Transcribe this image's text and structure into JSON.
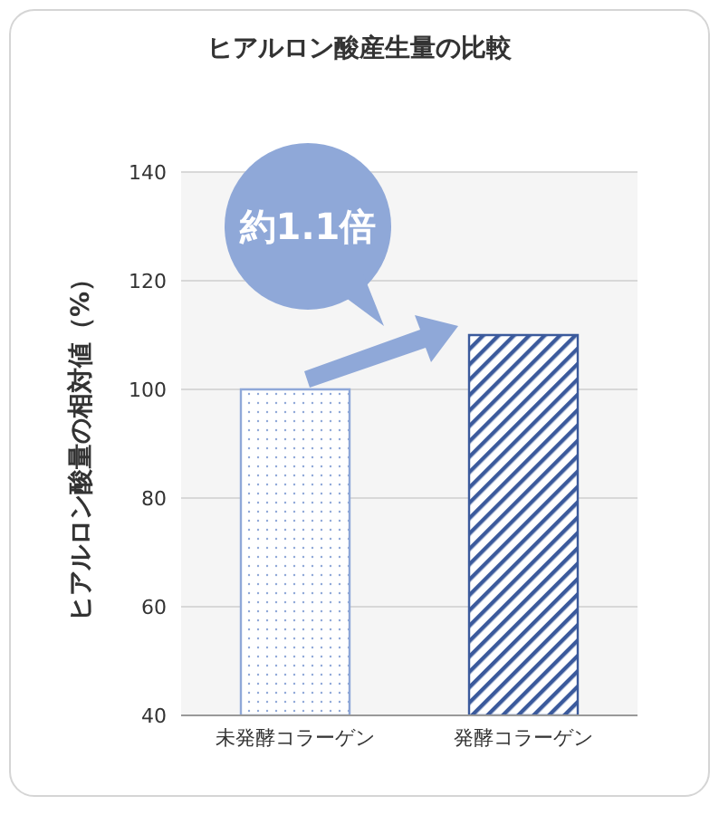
{
  "chart_data": {
    "type": "bar",
    "title": "ヒアルロン酸産生量の比較",
    "ylabel": "ヒアルロン酸量の相対値（%）",
    "categories": [
      "未発酵コラーゲン",
      "発酵コラーゲン"
    ],
    "values": [
      100,
      110
    ],
    "colors": [
      "#8fa8d8",
      "#3b5a9c"
    ],
    "ylim": [
      40,
      140
    ],
    "yticks": [
      40,
      60,
      80,
      100,
      120,
      140
    ],
    "grid": "y",
    "annotations": [
      "約1.1倍"
    ]
  }
}
